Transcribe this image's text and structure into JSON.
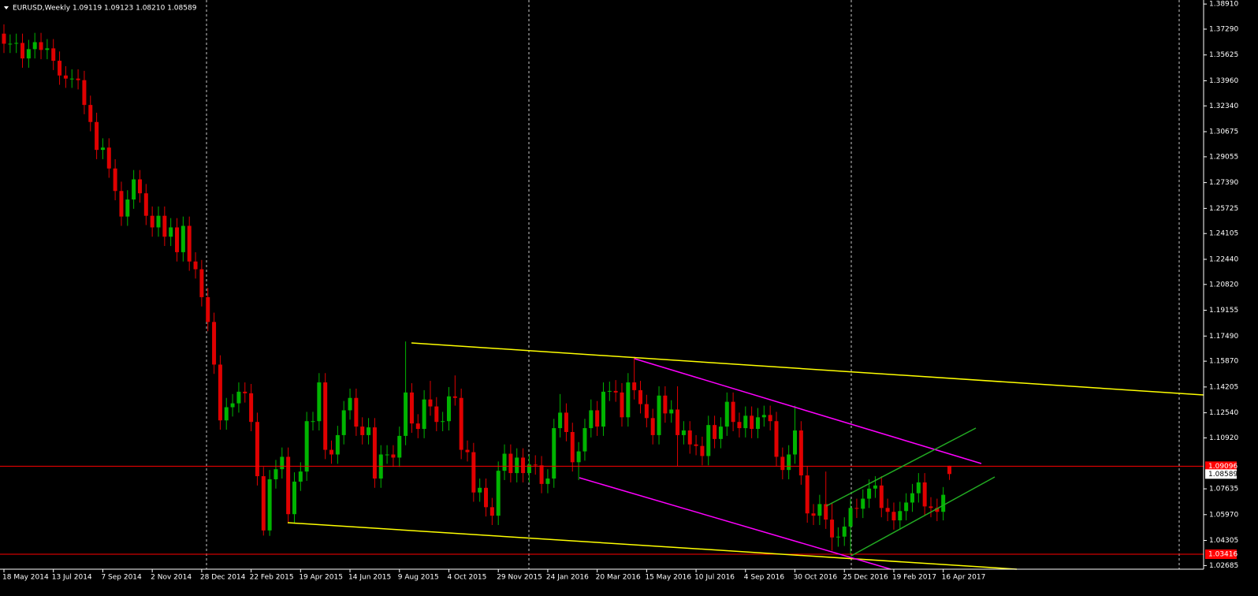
{
  "chart_data": {
    "type": "candlestick",
    "title": "EURUSD,Weekly  1.09119 1.09123 1.08210 1.08589",
    "categories": [
      "18 May 2014",
      null,
      null,
      null,
      null,
      null,
      null,
      null,
      "13 Jul 2014",
      null,
      null,
      null,
      null,
      null,
      null,
      null,
      "7 Sep 2014",
      null,
      null,
      null,
      null,
      null,
      null,
      null,
      "2 Nov 2014",
      null,
      null,
      null,
      null,
      null,
      null,
      null,
      "28 Dec 2014",
      null,
      null,
      null,
      null,
      null,
      null,
      null,
      "22 Feb 2015",
      null,
      null,
      null,
      null,
      null,
      null,
      null,
      "19 Apr 2015",
      null,
      null,
      null,
      null,
      null,
      null,
      null,
      "14 Jun 2015",
      null,
      null,
      null,
      null,
      null,
      null,
      null,
      "9 Aug 2015",
      null,
      null,
      null,
      null,
      null,
      null,
      null,
      "4 Oct 2015",
      null,
      null,
      null,
      null,
      null,
      null,
      null,
      "29 Nov 2015",
      null,
      null,
      null,
      null,
      null,
      null,
      null,
      "24 Jan 2016",
      null,
      null,
      null,
      null,
      null,
      null,
      null,
      "20 Mar 2016",
      null,
      null,
      null,
      null,
      null,
      null,
      null,
      "15 May 2016",
      null,
      null,
      null,
      null,
      null,
      null,
      null,
      "10 Jul 2016",
      null,
      null,
      null,
      null,
      null,
      null,
      null,
      "4 Sep 2016",
      null,
      null,
      null,
      null,
      null,
      null,
      null,
      "30 Oct 2016",
      null,
      null,
      null,
      null,
      null,
      null,
      null,
      "25 Dec 2016",
      null,
      null,
      null,
      null,
      null,
      null,
      null,
      "19 Feb 2017",
      null,
      null,
      null,
      null,
      null,
      null,
      null,
      "16 Apr 2017",
      null
    ],
    "open": [
      1.37,
      1.3635,
      1.3635,
      1.364,
      1.354,
      1.36,
      1.3645,
      1.3595,
      1.3605,
      1.3525,
      1.343,
      1.341,
      1.341,
      1.34,
      1.324,
      1.313,
      1.295,
      1.2965,
      1.283,
      1.2685,
      1.252,
      1.263,
      1.276,
      1.267,
      1.2525,
      1.245,
      1.2525,
      1.239,
      1.245,
      1.229,
      1.246,
      1.223,
      1.218,
      1.2,
      1.184,
      1.1565,
      1.1205,
      1.129,
      1.1315,
      1.139,
      1.138,
      1.1195,
      1.0845,
      1.0495,
      1.0825,
      1.089,
      1.097,
      1.06,
      1.081,
      1.0875,
      1.12,
      1.12,
      1.145,
      1.1015,
      1.0985,
      1.111,
      1.127,
      1.135,
      1.1165,
      1.111,
      1.116,
      1.083,
      1.0985,
      1.0985,
      1.0965,
      1.1105,
      1.1385,
      1.1185,
      1.115,
      1.134,
      1.1295,
      1.1195,
      1.12,
      1.136,
      1.135,
      1.1015,
      1.1,
      1.074,
      1.077,
      1.0645,
      1.059,
      1.088,
      1.099,
      1.0865,
      1.0965,
      1.0865,
      1.092,
      1.0915,
      1.0795,
      1.083,
      1.1155,
      1.1255,
      1.113,
      1.0935,
      1.1005,
      1.1155,
      1.127,
      1.1165,
      1.139,
      1.1395,
      1.1385,
      1.1225,
      1.145,
      1.14,
      1.131,
      1.122,
      1.111,
      1.1365,
      1.125,
      1.1275,
      1.111,
      1.114,
      1.105,
      1.104,
      1.0975,
      1.1175,
      1.1085,
      1.1165,
      1.1325,
      1.1195,
      1.1155,
      1.1235,
      1.115,
      1.1225,
      1.124,
      1.12,
      1.097,
      1.0885,
      1.0985,
      1.114,
      1.085,
      1.0605,
      1.059,
      1.0665,
      1.0565,
      1.045,
      1.0455,
      1.052,
      1.064,
      1.0635,
      1.07,
      1.0765,
      1.0785,
      1.064,
      1.0615,
      1.056,
      1.062,
      1.0675,
      1.0735,
      1.0805,
      1.065,
      1.064,
      1.0615,
      1.09119
    ],
    "high": [
      1.376,
      1.3695,
      1.37,
      1.37,
      1.366,
      1.3705,
      1.3705,
      1.3665,
      1.3665,
      1.3585,
      1.349,
      1.347,
      1.347,
      1.346,
      1.33,
      1.319,
      1.3025,
      1.3025,
      1.289,
      1.2745,
      1.269,
      1.282,
      1.282,
      1.273,
      1.2585,
      1.2585,
      1.2585,
      1.251,
      1.251,
      1.252,
      1.252,
      1.229,
      1.224,
      1.206,
      1.19,
      1.1625,
      1.135,
      1.1375,
      1.145,
      1.145,
      1.144,
      1.1255,
      1.0905,
      1.0885,
      1.095,
      1.103,
      1.103,
      1.087,
      1.0935,
      1.126,
      1.126,
      1.151,
      1.151,
      1.1075,
      1.117,
      1.133,
      1.141,
      1.141,
      1.1225,
      1.122,
      1.122,
      1.1045,
      1.1045,
      1.1045,
      1.1165,
      1.1714,
      1.1445,
      1.1245,
      1.14,
      1.146,
      1.1355,
      1.126,
      1.142,
      1.1495,
      1.141,
      1.1075,
      1.106,
      1.083,
      1.083,
      1.0705,
      1.094,
      1.105,
      1.105,
      1.1025,
      1.1025,
      1.098,
      1.098,
      1.0975,
      1.089,
      1.1215,
      1.1375,
      1.1315,
      1.119,
      1.1065,
      1.1215,
      1.134,
      1.133,
      1.145,
      1.1455,
      1.1465,
      1.1445,
      1.151,
      1.1616,
      1.146,
      1.137,
      1.128,
      1.1425,
      1.1425,
      1.1335,
      1.1425,
      1.12,
      1.12,
      1.111,
      1.11,
      1.1235,
      1.1235,
      1.1225,
      1.1385,
      1.1385,
      1.1255,
      1.1295,
      1.1295,
      1.1285,
      1.13,
      1.13,
      1.126,
      1.103,
      1.1045,
      1.13,
      1.12,
      1.091,
      1.0665,
      1.0725,
      1.0875,
      1.067,
      1.0515,
      1.058,
      1.07,
      1.07,
      1.076,
      1.0825,
      1.0845,
      1.0845,
      1.07,
      1.0675,
      1.068,
      1.0735,
      1.0795,
      1.0865,
      1.0865,
      1.071,
      1.07,
      1.0775,
      1.09123
    ],
    "low": [
      1.3575,
      1.3575,
      1.3575,
      1.348,
      1.348,
      1.354,
      1.3535,
      1.3535,
      1.3465,
      1.337,
      1.335,
      1.335,
      1.334,
      1.318,
      1.307,
      1.289,
      1.289,
      1.277,
      1.2625,
      1.246,
      1.246,
      1.257,
      1.261,
      1.2465,
      1.239,
      1.239,
      1.233,
      1.233,
      1.223,
      1.223,
      1.217,
      1.212,
      1.194,
      1.178,
      1.1505,
      1.1145,
      1.1145,
      1.123,
      1.1255,
      1.132,
      1.1135,
      1.0785,
      1.0462,
      1.046,
      1.0765,
      1.083,
      1.054,
      1.054,
      1.075,
      1.0815,
      1.114,
      1.114,
      1.0955,
      1.0925,
      1.0925,
      1.105,
      1.121,
      1.1105,
      1.105,
      1.105,
      1.077,
      1.077,
      1.0925,
      1.0905,
      1.0905,
      1.1045,
      1.1125,
      1.109,
      1.109,
      1.1235,
      1.1135,
      1.1135,
      1.114,
      1.13,
      1.0955,
      1.094,
      1.068,
      1.068,
      1.0585,
      1.053,
      1.053,
      1.082,
      1.0805,
      1.0805,
      1.0805,
      1.0805,
      1.0855,
      1.0735,
      1.0735,
      1.077,
      1.1095,
      1.107,
      1.0875,
      1.082,
      1.0945,
      1.1095,
      1.1105,
      1.1105,
      1.133,
      1.1325,
      1.1165,
      1.1165,
      1.134,
      1.125,
      1.116,
      1.105,
      1.105,
      1.119,
      1.119,
      1.091,
      1.105,
      1.099,
      1.098,
      1.0915,
      1.0915,
      1.1025,
      1.1025,
      1.1105,
      1.1135,
      1.1095,
      1.1095,
      1.109,
      1.109,
      1.1165,
      1.114,
      1.091,
      1.0825,
      1.0825,
      1.0925,
      1.079,
      1.0545,
      1.053,
      1.053,
      1.0505,
      1.0365,
      1.039,
      1.0395,
      1.034,
      1.0575,
      1.0575,
      1.064,
      1.0705,
      1.058,
      1.0555,
      1.05,
      1.05,
      1.056,
      1.0615,
      1.0675,
      1.059,
      1.058,
      1.0555,
      1.056,
      1.0821
    ],
    "close": [
      1.3635,
      1.3635,
      1.364,
      1.354,
      1.36,
      1.3645,
      1.3595,
      1.3605,
      1.3525,
      1.343,
      1.341,
      1.341,
      1.34,
      1.324,
      1.313,
      1.295,
      1.2965,
      1.283,
      1.2685,
      1.252,
      1.263,
      1.276,
      1.267,
      1.2525,
      1.245,
      1.2525,
      1.239,
      1.245,
      1.229,
      1.246,
      1.223,
      1.218,
      1.2,
      1.184,
      1.1565,
      1.1205,
      1.129,
      1.1315,
      1.139,
      1.138,
      1.1195,
      1.0845,
      1.0495,
      1.0825,
      1.089,
      1.097,
      1.06,
      1.081,
      1.0875,
      1.12,
      1.12,
      1.145,
      1.1015,
      1.0985,
      1.111,
      1.127,
      1.135,
      1.1165,
      1.111,
      1.116,
      1.083,
      1.0985,
      1.0985,
      1.0965,
      1.1105,
      1.1385,
      1.1185,
      1.115,
      1.134,
      1.1295,
      1.1195,
      1.12,
      1.136,
      1.135,
      1.1015,
      1.1,
      1.074,
      1.077,
      1.0645,
      1.059,
      1.088,
      1.099,
      1.0865,
      1.0965,
      1.0865,
      1.092,
      1.0915,
      1.0795,
      1.083,
      1.1155,
      1.1255,
      1.113,
      1.0935,
      1.1005,
      1.1155,
      1.127,
      1.1165,
      1.139,
      1.1395,
      1.1385,
      1.1225,
      1.145,
      1.14,
      1.131,
      1.122,
      1.111,
      1.1365,
      1.125,
      1.1275,
      1.111,
      1.114,
      1.105,
      1.104,
      1.0975,
      1.1175,
      1.1085,
      1.1165,
      1.1325,
      1.1195,
      1.1155,
      1.1235,
      1.115,
      1.1225,
      1.124,
      1.12,
      1.097,
      1.0885,
      1.0985,
      1.114,
      1.085,
      1.0605,
      1.059,
      1.0665,
      1.0565,
      1.045,
      1.0455,
      1.052,
      1.064,
      1.0635,
      1.07,
      1.0765,
      1.0785,
      1.064,
      1.0615,
      1.056,
      1.062,
      1.0675,
      1.0735,
      1.0805,
      1.065,
      1.064,
      1.0615,
      1.0725,
      1.08589
    ],
    "up_color": "#00b400",
    "down_color": "#e00000",
    "ylim": [
      1.0245,
      1.3917
    ],
    "yticks": [
      {
        "value": 1.3891,
        "label": "1.38910"
      },
      {
        "value": 1.3729,
        "label": "1.37290"
      },
      1.35625,
      {
        "value": 1.3396,
        "label": "1.33960"
      },
      {
        "value": 1.3234,
        "label": "1.32340"
      },
      1.30675,
      1.29055,
      {
        "value": 1.2739,
        "label": "1.27390"
      },
      1.25725,
      1.24105,
      {
        "value": 1.2244,
        "label": "1.22440"
      },
      {
        "value": 1.2082,
        "label": "1.20820"
      },
      1.19155,
      {
        "value": 1.1749,
        "label": "1.17490"
      },
      {
        "value": 1.1587,
        "label": "1.15870"
      },
      1.14205,
      {
        "value": 1.1254,
        "label": "1.12540"
      },
      {
        "value": 1.1092,
        "label": "1.10920"
      },
      1.07635,
      {
        "value": 1.0597,
        "label": "1.05970"
      },
      1.04305,
      1.02685
    ],
    "hlines": [
      1.09096,
      1.03416
    ],
    "hline_color": "#ff0000"
  }
}
